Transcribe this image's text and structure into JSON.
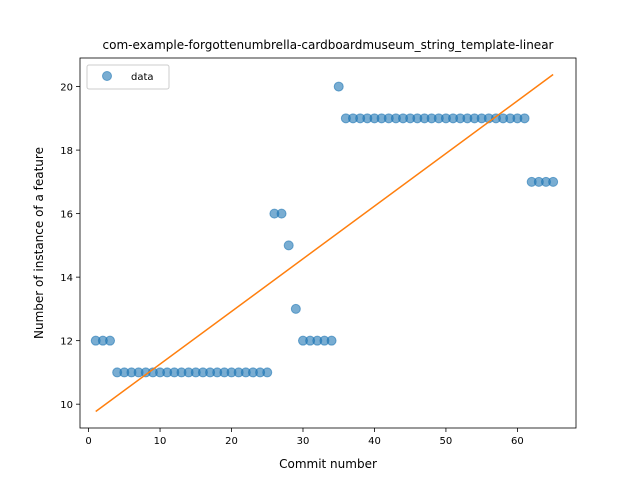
{
  "chart_data": {
    "type": "scatter",
    "title": "com-example-forgottenumbrella-cardboardmuseum_string_template-linear",
    "xlabel": "Commit number",
    "ylabel": "Number of instance of a feature",
    "xlim": [
      -1.2,
      68.2
    ],
    "ylim": [
      9.25,
      20.9
    ],
    "xticks": [
      0,
      10,
      20,
      30,
      40,
      50,
      60
    ],
    "yticks": [
      10,
      12,
      14,
      16,
      18,
      20
    ],
    "grid": false,
    "legend_position": "upper-left",
    "legend": [
      "data"
    ],
    "colors": {
      "points": "#1f77b4",
      "fit_line": "#ff7f0e"
    },
    "series": [
      {
        "name": "data",
        "kind": "points",
        "x": [
          1,
          2,
          3,
          4,
          5,
          6,
          7,
          8,
          9,
          10,
          11,
          12,
          13,
          14,
          15,
          16,
          17,
          18,
          19,
          20,
          21,
          22,
          23,
          24,
          25,
          26,
          27,
          28,
          29,
          30,
          31,
          32,
          33,
          34,
          35,
          36,
          37,
          38,
          39,
          40,
          41,
          42,
          43,
          44,
          45,
          46,
          47,
          48,
          49,
          50,
          51,
          52,
          53,
          54,
          55,
          56,
          57,
          58,
          59,
          60,
          61,
          62,
          63,
          64,
          65
        ],
        "y": [
          12,
          12,
          12,
          11,
          11,
          11,
          11,
          11,
          11,
          11,
          11,
          11,
          11,
          11,
          11,
          11,
          11,
          11,
          11,
          11,
          11,
          11,
          11,
          11,
          11,
          16,
          16,
          15,
          13,
          12,
          12,
          12,
          12,
          12,
          20,
          19,
          19,
          19,
          19,
          19,
          19,
          19,
          19,
          19,
          19,
          19,
          19,
          19,
          19,
          19,
          19,
          19,
          19,
          19,
          19,
          19,
          19,
          19,
          19,
          19,
          19,
          17,
          17,
          17,
          17
        ]
      },
      {
        "kind": "line",
        "x": [
          1,
          65
        ],
        "y": [
          9.77,
          20.38
        ]
      }
    ]
  }
}
